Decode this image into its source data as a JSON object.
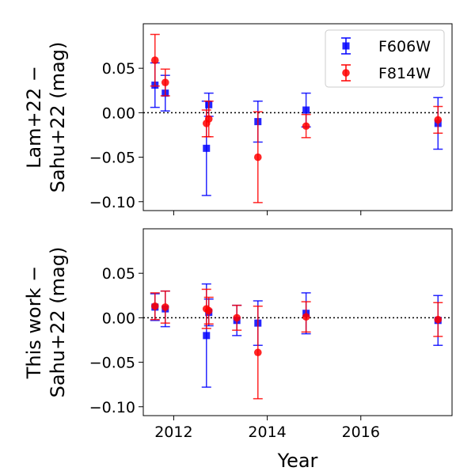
{
  "chart_data": [
    {
      "type": "scatter",
      "panel": "top",
      "ylabel_lines": [
        "Lam+22 −",
        "Sahu+22 (mag)"
      ],
      "xlabel": "",
      "xlim": [
        2011.35,
        2017.95
      ],
      "ylim": [
        -0.11,
        0.1
      ],
      "yticks": [
        0.05,
        0.0,
        -0.05,
        -0.1
      ],
      "ytick_labels": [
        "0.05",
        "0.00",
        "−0.05",
        "−0.10"
      ],
      "xticks": [
        2012,
        2014,
        2016
      ],
      "xtick_labels": [
        "",
        "",
        ""
      ],
      "reference_line_y": 0.0,
      "legend": {
        "position": "top-right",
        "entries": [
          {
            "label": "F606W",
            "color": "#0000ff",
            "marker": "square"
          },
          {
            "label": "F814W",
            "color": "#ff0000",
            "marker": "circle"
          }
        ]
      },
      "series": [
        {
          "name": "F606W",
          "color": "#0000ff",
          "marker": "square",
          "x": [
            2011.6,
            2011.82,
            2012.7,
            2012.75,
            2013.8,
            2014.83,
            2017.65
          ],
          "y": [
            0.031,
            0.022,
            -0.04,
            0.009,
            -0.01,
            0.003,
            -0.012
          ],
          "yerr": [
            0.025,
            0.02,
            0.053,
            0.013,
            0.023,
            0.019,
            0.029
          ]
        },
        {
          "name": "F814W",
          "color": "#ff0000",
          "marker": "circle",
          "x": [
            2011.6,
            2011.82,
            2012.7,
            2012.75,
            2013.8,
            2014.83,
            2017.65
          ],
          "y": [
            0.059,
            0.034,
            -0.012,
            -0.007,
            -0.05,
            -0.015,
            -0.008
          ],
          "yerr": [
            0.029,
            0.015,
            0.015,
            0.02,
            0.051,
            0.013,
            0.015
          ]
        }
      ]
    },
    {
      "type": "scatter",
      "panel": "bottom",
      "ylabel_lines": [
        "This work −",
        "Sahu+22 (mag)"
      ],
      "xlabel": "Year",
      "xlim": [
        2011.35,
        2017.95
      ],
      "ylim": [
        -0.11,
        0.1
      ],
      "yticks": [
        0.05,
        0.0,
        -0.05,
        -0.1
      ],
      "ytick_labels": [
        "0.05",
        "0.00",
        "−0.05",
        "−0.10"
      ],
      "xticks": [
        2012,
        2014,
        2016
      ],
      "xtick_labels": [
        "2012",
        "2014",
        "2016"
      ],
      "reference_line_y": 0.0,
      "series": [
        {
          "name": "F606W",
          "color": "#0000ff",
          "marker": "square",
          "x": [
            2011.6,
            2011.82,
            2012.7,
            2012.75,
            2013.35,
            2013.8,
            2014.83,
            2017.65
          ],
          "y": [
            0.012,
            0.01,
            -0.02,
            0.006,
            -0.003,
            -0.006,
            0.005,
            -0.003
          ],
          "yerr": [
            0.015,
            0.02,
            0.058,
            0.015,
            0.017,
            0.025,
            0.023,
            0.028
          ]
        },
        {
          "name": "F814W",
          "color": "#ff0000",
          "marker": "circle",
          "x": [
            2011.6,
            2011.82,
            2012.7,
            2012.75,
            2013.35,
            2013.8,
            2014.83,
            2017.65
          ],
          "y": [
            0.013,
            0.012,
            0.01,
            0.008,
            0.0,
            -0.039,
            0.001,
            -0.002
          ],
          "yerr": [
            0.015,
            0.018,
            0.022,
            0.015,
            0.014,
            0.052,
            0.017,
            0.019
          ]
        }
      ]
    }
  ]
}
